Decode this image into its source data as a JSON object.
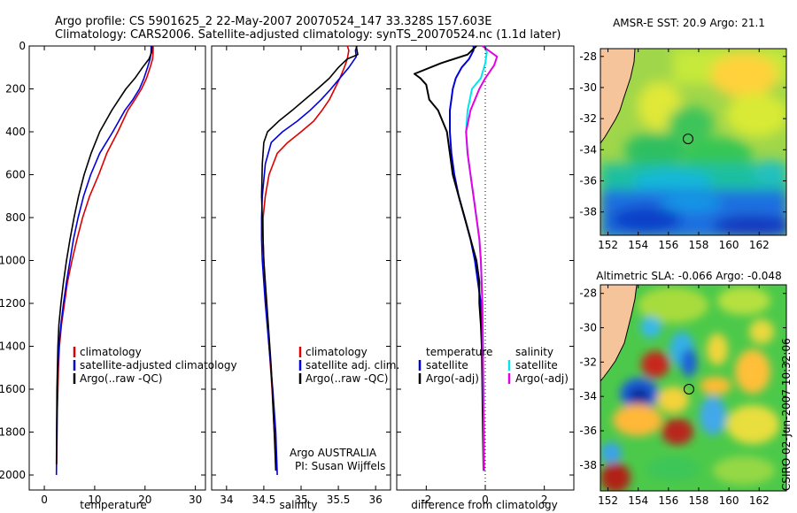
{
  "title": {
    "line1": "Argo profile: CS 5901625_2 22-May-2007 20070524_147 33.328S 157.603E",
    "line2": "Climatology: CARS2006. Satellite-adjusted climatology: synTS_20070524.nc (1.1d later)"
  },
  "side_label": "CSIRO 02-Jun-2007 10:32:06",
  "colors": {
    "climatology": "#dd0000",
    "satellite": "#0000dd",
    "argo": "#000000",
    "sat_sal": "#00e5f0",
    "argo_sal": "#e600e6",
    "land": "#f5c49b"
  },
  "chart_data": [
    {
      "type": "line",
      "id": "temperature",
      "xlabel": "temperature",
      "xlim": [
        -3,
        32
      ],
      "ylim": [
        0,
        2070
      ],
      "y_reversed": true,
      "xticks": [
        "0",
        "10",
        "20",
        "30"
      ],
      "yticks": [
        "0",
        "200",
        "400",
        "600",
        "800",
        "1000",
        "1200",
        "1400",
        "1600",
        "1800",
        "2000"
      ],
      "legend": [
        "climatology",
        "satellite-adjusted climatology",
        "Argo(..raw -QC)"
      ],
      "series": [
        {
          "name": "climatology",
          "color": "#dd0000",
          "x": [
            21.6,
            21.6,
            21.5,
            21.0,
            20.3,
            19.3,
            18.0,
            16.6,
            14.6,
            12.4,
            10.8,
            9.0,
            7.6,
            6.5,
            5.5,
            4.6,
            4.0,
            3.4,
            3.0,
            2.8,
            2.6,
            2.45
          ],
          "y": [
            0,
            30,
            60,
            100,
            150,
            200,
            250,
            300,
            400,
            500,
            600,
            700,
            800,
            900,
            1000,
            1100,
            1200,
            1300,
            1400,
            1500,
            1700,
            1950
          ]
        },
        {
          "name": "satellite-adjusted climatology",
          "color": "#0000dd",
          "x": [
            21.2,
            21.2,
            21.0,
            20.5,
            19.8,
            18.9,
            17.6,
            16.0,
            13.6,
            11.0,
            9.2,
            7.8,
            6.7,
            5.8,
            5.1,
            4.4,
            3.8,
            3.3,
            2.9,
            2.7,
            2.5,
            2.4
          ],
          "y": [
            0,
            30,
            60,
            100,
            150,
            200,
            250,
            300,
            400,
            500,
            600,
            700,
            800,
            900,
            1000,
            1100,
            1200,
            1300,
            1400,
            1500,
            1700,
            2000
          ]
        },
        {
          "name": "Argo(..raw -QC)",
          "color": "#000000",
          "x": [
            21.4,
            21.3,
            20.8,
            19.5,
            18.0,
            16.2,
            14.8,
            13.4,
            11.0,
            9.3,
            7.9,
            6.8,
            5.9,
            5.1,
            4.4,
            3.8,
            3.3,
            2.9,
            2.7,
            2.5,
            2.4
          ],
          "y": [
            0,
            30,
            60,
            100,
            150,
            200,
            250,
            300,
            400,
            500,
            600,
            700,
            800,
            900,
            1000,
            1100,
            1200,
            1300,
            1400,
            1600,
            1950
          ]
        }
      ]
    },
    {
      "type": "line",
      "id": "salinity",
      "xlabel": "salinity",
      "xlim": [
        33.8,
        36.2
      ],
      "ylim": [
        0,
        2070
      ],
      "y_reversed": true,
      "xticks": [
        "34",
        "34.5",
        "35",
        "35.5",
        "36"
      ],
      "legend": [
        "climatology",
        "satellite adj. clim.",
        "Argo(..raw -QC)"
      ],
      "annotation": [
        "Argo AUSTRALIA",
        "PI: Susan Wijffels"
      ],
      "series": [
        {
          "name": "climatology",
          "color": "#dd0000",
          "x": [
            35.62,
            35.64,
            35.62,
            35.58,
            35.52,
            35.45,
            35.38,
            35.28,
            35.17,
            35.0,
            34.82,
            34.68,
            34.57,
            34.52,
            34.49,
            34.49,
            34.5,
            34.53,
            34.57,
            34.61,
            34.64,
            34.67
          ],
          "y": [
            0,
            20,
            60,
            100,
            150,
            200,
            250,
            300,
            350,
            400,
            450,
            500,
            600,
            700,
            800,
            900,
            1000,
            1200,
            1400,
            1600,
            1800,
            1980
          ]
        },
        {
          "name": "satellite adj. clim.",
          "color": "#0000dd",
          "x": [
            35.75,
            35.73,
            35.74,
            35.64,
            35.52,
            35.4,
            35.27,
            35.12,
            34.95,
            34.75,
            34.6,
            34.52,
            34.48,
            34.47,
            34.47,
            34.48,
            34.52,
            34.57,
            34.62,
            34.66,
            34.68
          ],
          "y": [
            0,
            20,
            50,
            100,
            150,
            200,
            250,
            300,
            350,
            400,
            450,
            550,
            700,
            800,
            900,
            1000,
            1200,
            1400,
            1600,
            1800,
            2000
          ]
        },
        {
          "name": "Argo(..raw -QC)",
          "color": "#000000",
          "x": [
            35.74,
            35.76,
            35.62,
            35.5,
            35.38,
            35.22,
            35.05,
            34.88,
            34.7,
            34.55,
            34.5,
            34.48,
            34.47,
            34.48,
            34.5,
            34.56,
            34.6,
            34.64,
            34.66
          ],
          "y": [
            0,
            40,
            60,
            100,
            150,
            200,
            250,
            300,
            350,
            400,
            450,
            550,
            700,
            800,
            1000,
            1300,
            1500,
            1800,
            1980
          ]
        }
      ]
    },
    {
      "type": "line",
      "id": "difference",
      "xlabel": "difference from climatology",
      "xlim": [
        -3,
        3
      ],
      "ylim": [
        0,
        2070
      ],
      "y_reversed": true,
      "xticks": [
        "-2",
        "0",
        "2"
      ],
      "legend_left": [
        "temperature",
        "satellite",
        "Argo(-adj)"
      ],
      "legend_right": [
        "salinity",
        "satellite",
        "Argo(-adj)"
      ],
      "series": [
        {
          "name": "temperature satellite",
          "color": "#0000dd",
          "x": [
            -0.4,
            -0.4,
            -0.55,
            -0.8,
            -1.0,
            -1.1,
            -1.15,
            -1.2,
            -1.2,
            -1.15,
            -1.05,
            -0.9,
            -0.7,
            -0.5,
            -0.35,
            -0.25,
            -0.15,
            -0.1,
            -0.07,
            -0.05,
            -0.04
          ],
          "y": [
            0,
            20,
            60,
            100,
            150,
            200,
            250,
            300,
            400,
            500,
            600,
            700,
            800,
            900,
            1000,
            1100,
            1200,
            1400,
            1600,
            1800,
            1980
          ]
        },
        {
          "name": "temperature Argo(-adj)",
          "color": "#000000",
          "x": [
            -0.3,
            -0.6,
            -1.5,
            -2.4,
            -2.2,
            -2.0,
            -1.9,
            -1.6,
            -1.3,
            -1.2,
            -1.1,
            -0.9,
            -0.7,
            -0.5,
            -0.3,
            -0.2,
            -0.2,
            -0.15,
            -0.12,
            -0.1,
            -0.08,
            -0.06
          ],
          "y": [
            0,
            40,
            80,
            130,
            150,
            180,
            250,
            300,
            400,
            500,
            600,
            700,
            800,
            900,
            1000,
            1100,
            1200,
            1300,
            1400,
            1600,
            1800,
            1980
          ]
        },
        {
          "name": "salinity satellite",
          "color": "#00e5f0",
          "x": [
            0.0,
            0.05,
            0.0,
            -0.15,
            -0.45,
            -0.6,
            -0.65,
            -0.6,
            -0.5,
            -0.4,
            -0.3,
            -0.2,
            -0.15,
            -0.1,
            -0.08,
            -0.06,
            -0.05
          ],
          "y": [
            0,
            30,
            80,
            150,
            200,
            300,
            400,
            500,
            600,
            700,
            800,
            900,
            1000,
            1200,
            1400,
            1700,
            1980
          ]
        },
        {
          "name": "salinity Argo(-adj)",
          "color": "#e600e6",
          "x": [
            -0.1,
            0.4,
            0.3,
            0.0,
            -0.2,
            -0.5,
            -0.65,
            -0.6,
            -0.5,
            -0.4,
            -0.3,
            -0.2,
            -0.15,
            -0.1,
            -0.08,
            -0.06,
            -0.05
          ],
          "y": [
            0,
            50,
            90,
            150,
            200,
            300,
            400,
            500,
            600,
            700,
            800,
            900,
            1000,
            1200,
            1400,
            1700,
            1980
          ]
        }
      ]
    },
    {
      "type": "heatmap",
      "id": "sst-map",
      "title": "AMSR-E SST: 20.9 Argo: 21.1",
      "xlim": [
        151.5,
        163.8
      ],
      "ylim": [
        -39.5,
        -27.5
      ],
      "xticks": [
        "152",
        "154",
        "156",
        "158",
        "160",
        "162"
      ],
      "yticks": [
        "-28",
        "-30",
        "-32",
        "-34",
        "-36",
        "-38"
      ],
      "profile_location": {
        "lon": 157.603,
        "lat": -33.328
      }
    },
    {
      "type": "heatmap",
      "id": "sla-map",
      "title": "Altimetric SLA: -0.066 Argo: -0.048",
      "xlim": [
        151.5,
        163.8
      ],
      "ylim": [
        -39.5,
        -27.5
      ],
      "xticks": [
        "152",
        "154",
        "156",
        "158",
        "160",
        "162"
      ],
      "yticks": [
        "-28",
        "-30",
        "-32",
        "-34",
        "-36",
        "-38"
      ],
      "profile_location": {
        "lon": 157.603,
        "lat": -33.328
      }
    }
  ]
}
